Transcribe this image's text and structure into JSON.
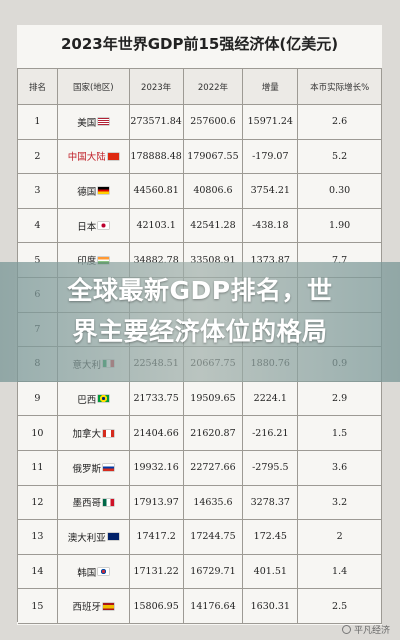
{
  "table": {
    "title": "2023年世界GDP前15强经济体(亿美元)",
    "headers": [
      "排名",
      "国家(地区)",
      "2023年",
      "2022年",
      "增量",
      "本币实际增长%"
    ],
    "rows": [
      {
        "rank": "1",
        "country": "美国",
        "flag": "us-flag",
        "v2023": "273571.84",
        "v2022": "257600.6",
        "delta": "15971.24",
        "growth": "2.6"
      },
      {
        "rank": "2",
        "country": "中国大陆",
        "flag": "cn-flag",
        "highlight": true,
        "v2023": "178888.48",
        "v2022": "179067.55",
        "delta": "-179.07",
        "growth": "5.2"
      },
      {
        "rank": "3",
        "country": "德国",
        "flag": "de-flag",
        "v2023": "44560.81",
        "v2022": "40806.6",
        "delta": "3754.21",
        "growth": "0.30"
      },
      {
        "rank": "4",
        "country": "日本",
        "flag": "jp-flag",
        "v2023": "42103.1",
        "v2022": "42541.28",
        "delta": "-438.18",
        "growth": "1.90"
      },
      {
        "rank": "5",
        "country": "印度",
        "flag": "in-flag",
        "v2023": "34882.78",
        "v2022": "33508.91",
        "delta": "1373.87",
        "growth": "7.7"
      },
      {
        "rank": "6",
        "country": "",
        "flag": "",
        "v2023": "",
        "v2022": "",
        "delta": "",
        "growth": ""
      },
      {
        "rank": "7",
        "country": "",
        "flag": "",
        "v2023": "",
        "v2022": "",
        "delta": "",
        "growth": ""
      },
      {
        "rank": "8",
        "country": "意大利",
        "flag": "it-flag",
        "v2023": "22548.51",
        "v2022": "20667.75",
        "delta": "1880.76",
        "growth": "0.9"
      },
      {
        "rank": "9",
        "country": "巴西",
        "flag": "br-flag",
        "v2023": "21733.75",
        "v2022": "19509.65",
        "delta": "2224.1",
        "growth": "2.9"
      },
      {
        "rank": "10",
        "country": "加拿大",
        "flag": "ca-flag",
        "v2023": "21404.66",
        "v2022": "21620.87",
        "delta": "-216.21",
        "growth": "1.5"
      },
      {
        "rank": "11",
        "country": "俄罗斯",
        "flag": "ru-flag",
        "v2023": "19932.16",
        "v2022": "22727.66",
        "delta": "-2795.5",
        "growth": "3.6"
      },
      {
        "rank": "12",
        "country": "墨西哥",
        "flag": "mx-flag",
        "v2023": "17913.97",
        "v2022": "14635.6",
        "delta": "3278.37",
        "growth": "3.2"
      },
      {
        "rank": "13",
        "country": "澳大利亚",
        "flag": "au-flag",
        "v2023": "17417.2",
        "v2022": "17244.75",
        "delta": "172.45",
        "growth": "2"
      },
      {
        "rank": "14",
        "country": "韩国",
        "flag": "kr-flag",
        "v2023": "17131.22",
        "v2022": "16729.71",
        "delta": "401.51",
        "growth": "1.4"
      },
      {
        "rank": "15",
        "country": "西班牙",
        "flag": "es-flag",
        "v2023": "15806.95",
        "v2022": "14176.64",
        "delta": "1630.31",
        "growth": "2.5"
      }
    ]
  },
  "overlay": {
    "line1": "全球最新GDP排名，世",
    "line2": "界主要经济体位的格局"
  },
  "watermark": "平凡经济"
}
